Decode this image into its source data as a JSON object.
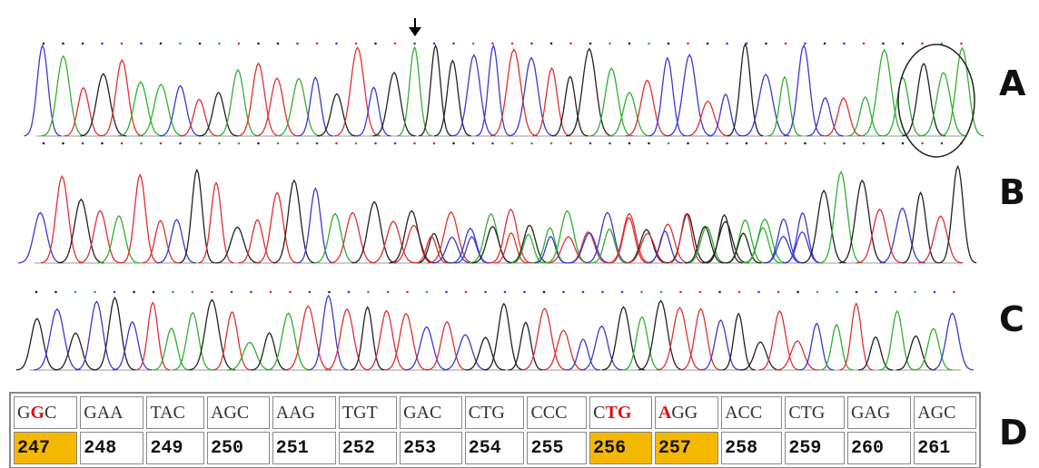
{
  "panels": {
    "a": "A",
    "b": "B",
    "c": "C",
    "d": "D"
  },
  "table": {
    "codons": [
      [
        {
          "text": "G"
        },
        {
          "text": "G",
          "color": "#e01010"
        },
        {
          "text": "C"
        }
      ],
      [
        {
          "text": "GAA"
        }
      ],
      [
        {
          "text": "TAC"
        }
      ],
      [
        {
          "text": "AGC"
        }
      ],
      [
        {
          "text": "AAG"
        }
      ],
      [
        {
          "text": "TGT"
        }
      ],
      [
        {
          "text": "GAC"
        }
      ],
      [
        {
          "text": "CTG"
        }
      ],
      [
        {
          "text": "CCC"
        }
      ],
      [
        {
          "text": "C"
        },
        {
          "text": "TG",
          "color": "#e01010"
        }
      ],
      [
        {
          "text": "A",
          "color": "#e01010"
        },
        {
          "text": "GG"
        }
      ],
      [
        {
          "text": "ACC"
        }
      ],
      [
        {
          "text": "CTG"
        }
      ],
      [
        {
          "text": "GAG"
        }
      ],
      [
        {
          "text": "AGC"
        }
      ]
    ],
    "positions": [
      {
        "number": 247,
        "highlight": true
      },
      {
        "number": 248
      },
      {
        "number": 249
      },
      {
        "number": 250
      },
      {
        "number": 251
      },
      {
        "number": 252
      },
      {
        "number": 253
      },
      {
        "number": 254
      },
      {
        "number": 255
      },
      {
        "number": 256,
        "highlight": true
      },
      {
        "number": 257,
        "highlight": true
      },
      {
        "number": 258
      },
      {
        "number": 259
      },
      {
        "number": 260
      },
      {
        "number": 261
      }
    ],
    "highlight_color": "#f5b800"
  }
}
